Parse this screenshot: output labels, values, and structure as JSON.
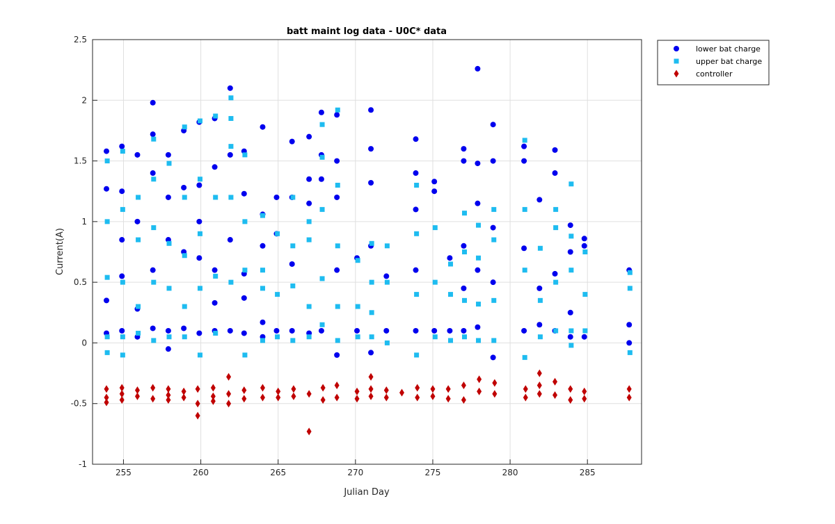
{
  "chart_data": {
    "type": "scatter",
    "title": "batt maint log data - U0C* data",
    "x_label": "Julian Day",
    "y_label": "Current(A)",
    "xlim": [
      253,
      288.5
    ],
    "ylim": [
      -1,
      2.5
    ],
    "xticks": [
      255,
      260,
      265,
      270,
      275,
      280,
      285
    ],
    "yticks": [
      -1,
      -0.5,
      0,
      0.5,
      1,
      1.5,
      2,
      2.5
    ],
    "grid": true,
    "legend_location": "northeastoutside",
    "series": [
      {
        "name": "lower bat charge",
        "color": "#0000ee",
        "marker": "circle",
        "x": [
          253.9,
          253.9,
          253.9,
          253.9,
          254.9,
          254.9,
          254.9,
          254.9,
          254.9,
          255.9,
          255.9,
          255.9,
          255.9,
          256.9,
          256.9,
          256.9,
          256.9,
          256.9,
          257.9,
          257.9,
          257.9,
          257.9,
          257.9,
          258.9,
          258.9,
          258.9,
          258.9,
          259.9,
          259.9,
          259.9,
          259.9,
          259.9,
          260.9,
          260.9,
          260.9,
          260.9,
          260.9,
          261.9,
          261.9,
          261.9,
          261.9,
          262.8,
          262.8,
          262.8,
          262.8,
          262.8,
          264.0,
          264.0,
          264.0,
          264.0,
          264.0,
          264.9,
          264.9,
          264.9,
          265.9,
          265.9,
          265.9,
          265.9,
          267.0,
          267.0,
          267.0,
          267.0,
          267.8,
          267.8,
          267.8,
          267.8,
          268.8,
          268.8,
          268.8,
          268.8,
          268.8,
          270.1,
          270.1,
          271.0,
          271.0,
          271.0,
          271.0,
          271.0,
          272.0,
          272.0,
          273.9,
          273.9,
          273.9,
          273.9,
          273.9,
          275.1,
          275.1,
          275.1,
          276.1,
          276.1,
          277.0,
          277.0,
          277.0,
          277.0,
          277.0,
          277.9,
          277.9,
          277.9,
          277.9,
          277.9,
          278.9,
          278.9,
          278.9,
          278.9,
          278.9,
          280.9,
          280.9,
          280.9,
          280.9,
          281.9,
          281.9,
          281.9,
          282.9,
          282.9,
          282.9,
          282.9,
          283.9,
          283.9,
          283.9,
          283.9,
          284.8,
          284.8,
          284.8,
          287.7,
          287.7,
          287.7
        ],
        "values": [
          1.58,
          1.27,
          0.35,
          0.08,
          1.62,
          1.25,
          0.85,
          0.55,
          0.1,
          1.55,
          1.0,
          0.28,
          0.05,
          1.98,
          1.72,
          1.4,
          0.6,
          0.12,
          1.55,
          1.2,
          0.85,
          0.1,
          -0.05,
          1.75,
          1.28,
          0.75,
          0.12,
          1.82,
          1.3,
          1.0,
          0.7,
          0.08,
          1.85,
          1.45,
          0.6,
          0.33,
          0.1,
          2.1,
          1.55,
          0.85,
          0.1,
          1.58,
          1.23,
          0.57,
          0.37,
          0.08,
          1.78,
          1.06,
          0.8,
          0.17,
          0.05,
          1.2,
          0.9,
          0.1,
          1.66,
          1.2,
          0.65,
          0.1,
          1.7,
          1.35,
          1.15,
          0.08,
          1.9,
          1.55,
          1.35,
          0.1,
          1.88,
          1.5,
          1.2,
          0.6,
          -0.1,
          0.7,
          0.1,
          1.92,
          1.6,
          1.32,
          0.8,
          -0.08,
          0.55,
          0.1,
          1.68,
          1.4,
          1.1,
          0.6,
          0.1,
          1.33,
          1.25,
          0.1,
          0.7,
          0.1,
          1.6,
          1.5,
          0.8,
          0.45,
          0.1,
          2.26,
          1.48,
          1.15,
          0.6,
          0.13,
          1.8,
          1.5,
          0.95,
          0.5,
          -0.12,
          1.62,
          1.5,
          0.78,
          0.1,
          1.18,
          0.45,
          0.15,
          1.59,
          1.4,
          0.57,
          0.1,
          0.97,
          0.75,
          0.25,
          0.05,
          0.86,
          0.8,
          0.05,
          0.15,
          0.6,
          0.0
        ]
      },
      {
        "name": "upper bat charge",
        "color": "#1ebcf0",
        "marker": "square",
        "x": [
          253.95,
          253.95,
          253.95,
          253.95,
          253.95,
          254.95,
          254.95,
          254.95,
          254.95,
          254.95,
          255.95,
          255.95,
          255.95,
          255.95,
          256.95,
          256.95,
          256.95,
          256.95,
          256.95,
          257.95,
          257.95,
          257.95,
          257.95,
          258.95,
          258.95,
          258.95,
          258.95,
          258.95,
          259.95,
          259.95,
          259.95,
          259.95,
          259.95,
          260.95,
          260.95,
          260.95,
          260.95,
          261.95,
          261.95,
          261.95,
          261.95,
          261.95,
          262.85,
          262.85,
          262.85,
          262.85,
          264.0,
          264.0,
          264.0,
          264.0,
          264.95,
          264.95,
          264.95,
          265.95,
          265.95,
          265.95,
          265.95,
          267.0,
          267.0,
          267.0,
          267.0,
          267.85,
          267.85,
          267.85,
          267.85,
          267.85,
          268.85,
          268.85,
          268.85,
          268.85,
          268.85,
          270.15,
          270.15,
          270.15,
          271.05,
          271.05,
          271.05,
          271.05,
          272.05,
          272.05,
          272.05,
          273.95,
          273.95,
          273.95,
          273.95,
          275.15,
          275.15,
          275.15,
          276.15,
          276.15,
          276.15,
          277.05,
          277.05,
          277.05,
          277.05,
          277.95,
          277.95,
          277.95,
          277.95,
          278.95,
          278.95,
          278.95,
          278.95,
          280.95,
          280.95,
          280.95,
          280.95,
          281.95,
          281.95,
          281.95,
          282.95,
          282.95,
          282.95,
          282.95,
          283.95,
          283.95,
          283.95,
          283.95,
          283.95,
          284.85,
          284.85,
          284.85,
          287.75,
          287.75,
          287.75
        ],
        "values": [
          1.5,
          1.0,
          0.54,
          0.05,
          -0.08,
          1.58,
          1.1,
          0.5,
          0.05,
          -0.1,
          1.2,
          0.85,
          0.3,
          0.08,
          1.68,
          1.35,
          0.95,
          0.5,
          0.02,
          1.48,
          0.82,
          0.45,
          0.05,
          1.78,
          1.2,
          0.72,
          0.3,
          0.05,
          1.83,
          1.35,
          0.9,
          0.45,
          -0.1,
          1.87,
          1.2,
          0.55,
          0.08,
          2.02,
          1.85,
          1.62,
          1.2,
          0.5,
          1.55,
          1.0,
          0.6,
          -0.1,
          1.05,
          0.6,
          0.45,
          0.02,
          0.9,
          0.4,
          0.05,
          1.2,
          0.8,
          0.47,
          0.02,
          1.0,
          0.85,
          0.3,
          0.05,
          1.8,
          1.53,
          1.1,
          0.53,
          0.15,
          1.92,
          1.3,
          0.8,
          0.3,
          0.02,
          0.68,
          0.3,
          0.05,
          0.82,
          0.5,
          0.25,
          0.05,
          0.8,
          0.5,
          0.0,
          1.3,
          0.9,
          0.4,
          -0.1,
          0.95,
          0.5,
          0.05,
          0.65,
          0.4,
          0.02,
          1.07,
          0.75,
          0.35,
          0.05,
          0.97,
          0.7,
          0.32,
          0.02,
          1.1,
          0.85,
          0.35,
          0.02,
          1.67,
          1.1,
          0.6,
          -0.12,
          0.78,
          0.35,
          0.05,
          1.1,
          0.95,
          0.5,
          0.1,
          1.31,
          0.88,
          0.6,
          0.1,
          -0.02,
          0.75,
          0.4,
          0.1,
          0.58,
          0.45,
          -0.08
        ]
      },
      {
        "name": "controller",
        "color": "#c00000",
        "marker": "diamond",
        "x": [
          253.9,
          253.9,
          253.9,
          254.9,
          254.9,
          254.9,
          255.9,
          255.9,
          256.9,
          256.9,
          257.9,
          257.9,
          257.9,
          258.9,
          258.9,
          259.8,
          259.8,
          259.8,
          260.8,
          260.8,
          260.8,
          261.8,
          261.8,
          261.8,
          262.8,
          262.8,
          264.0,
          264.0,
          265.0,
          265.0,
          266.0,
          266.0,
          267.0,
          267.0,
          267.9,
          267.9,
          268.8,
          268.8,
          270.1,
          270.1,
          271.0,
          271.0,
          271.0,
          272.0,
          272.0,
          273.0,
          274.0,
          274.0,
          275.0,
          275.0,
          276.0,
          276.0,
          277.0,
          277.0,
          278.0,
          278.0,
          279.0,
          279.0,
          281.0,
          281.0,
          281.9,
          281.9,
          281.9,
          282.9,
          282.9,
          283.9,
          283.9,
          284.8,
          284.8,
          287.7,
          287.7
        ],
        "values": [
          -0.38,
          -0.45,
          -0.49,
          -0.37,
          -0.42,
          -0.47,
          -0.39,
          -0.44,
          -0.37,
          -0.46,
          -0.38,
          -0.43,
          -0.47,
          -0.4,
          -0.45,
          -0.38,
          -0.5,
          -0.6,
          -0.37,
          -0.44,
          -0.48,
          -0.28,
          -0.42,
          -0.5,
          -0.39,
          -0.46,
          -0.37,
          -0.45,
          -0.4,
          -0.45,
          -0.38,
          -0.44,
          -0.73,
          -0.42,
          -0.37,
          -0.47,
          -0.35,
          -0.45,
          -0.4,
          -0.46,
          -0.28,
          -0.38,
          -0.44,
          -0.39,
          -0.45,
          -0.41,
          -0.37,
          -0.45,
          -0.38,
          -0.44,
          -0.38,
          -0.46,
          -0.35,
          -0.47,
          -0.3,
          -0.4,
          -0.33,
          -0.42,
          -0.38,
          -0.45,
          -0.25,
          -0.35,
          -0.42,
          -0.32,
          -0.43,
          -0.38,
          -0.47,
          -0.4,
          -0.46,
          -0.38,
          -0.45
        ]
      }
    ]
  }
}
